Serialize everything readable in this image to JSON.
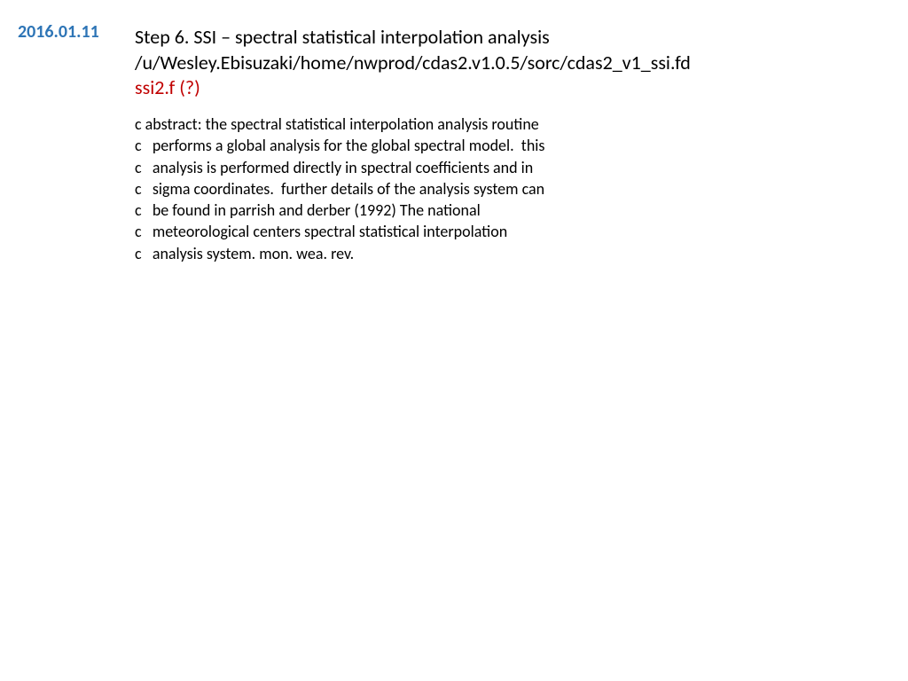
{
  "date": {
    "text": "2016.01.11",
    "color": "#2e75b6"
  },
  "header": {
    "line1": "Step 6. SSI – spectral statistical interpolation analysis",
    "line2": "/u/Wesley.Ebisuzaki/home/nwprod/cdas2.v1.0.5/sorc/cdas2_v1_ssi.fd",
    "line3": "ssi2.f (?)",
    "line3_color": "#c00000"
  },
  "abstract": {
    "lines": [
      "c abstract: the spectral statistical interpolation analysis routine",
      "c   performs a global analysis for the global spectral model.  this",
      "c   analysis is performed directly in spectral coefficients and in",
      "c   sigma coordinates.  further details of the analysis system can",
      "c   be found in parrish and derber (1992) The national",
      "c   meteorological centers spectral statistical interpolation",
      "c   analysis system. mon. wea. rev."
    ]
  }
}
